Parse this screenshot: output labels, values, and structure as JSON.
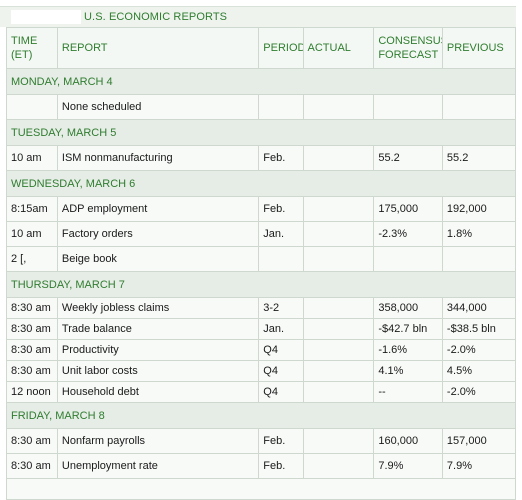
{
  "title": "U.S. ECONOMIC REPORTS",
  "columns": {
    "time": "TIME (ET)",
    "report": "REPORT",
    "period": "PERIOD",
    "actual": "ACTUAL",
    "consensus": "CONSENSUS FORECAST",
    "previous": "PREVIOUS"
  },
  "days": [
    {
      "label": "MONDAY, MARCH 4",
      "rows": [
        {
          "time": "",
          "report": "None scheduled",
          "period": "",
          "actual": "",
          "consensus": "",
          "previous": ""
        }
      ]
    },
    {
      "label": "TUESDAY, MARCH 5",
      "rows": [
        {
          "time": "10 am",
          "report": "ISM nonmanufacturing",
          "period": "Feb.",
          "actual": "",
          "consensus": "55.2",
          "previous": "55.2"
        }
      ]
    },
    {
      "label": "WEDNESDAY, MARCH 6",
      "rows": [
        {
          "time": "8:15am",
          "report": "ADP employment",
          "period": "Feb.",
          "actual": "",
          "consensus": "175,000",
          "previous": "192,000"
        },
        {
          "time": "10 am",
          "report": "Factory orders",
          "period": "Jan.",
          "actual": "",
          "consensus": "-2.3%",
          "previous": "1.8%"
        },
        {
          "time": "2 [,",
          "report": "Beige book",
          "period": "",
          "actual": "",
          "consensus": "",
          "previous": ""
        }
      ]
    },
    {
      "label": "THURSDAY, MARCH 7",
      "rows": [
        {
          "time": "8:30 am",
          "report": "Weekly jobless claims",
          "period": "3-2",
          "actual": "",
          "consensus": "358,000",
          "previous": "344,000"
        },
        {
          "time": "8:30 am",
          "report": "Trade balance",
          "period": "Jan.",
          "actual": "",
          "consensus": "-$42.7 bln",
          "previous": "-$38.5 bln"
        },
        {
          "time": "8:30 am",
          "report": "Productivity",
          "period": "Q4",
          "actual": "",
          "consensus": "-1.6%",
          "previous": "-2.0%"
        },
        {
          "time": "8:30 am",
          "report": "Unit labor costs",
          "period": "Q4",
          "actual": "",
          "consensus": "4.1%",
          "previous": "4.5%"
        },
        {
          "time": "12 noon",
          "report": "Household debt",
          "period": "Q4",
          "actual": "",
          "consensus": "--",
          "previous": "-2.0%"
        }
      ]
    },
    {
      "label": "FRIDAY, MARCH 8",
      "rows": [
        {
          "time": "8:30 am",
          "report": "Nonfarm payrolls",
          "period": "Feb.",
          "actual": "",
          "consensus": "160,000",
          "previous": "157,000"
        },
        {
          "time": "8:30 am",
          "report": "Unemployment rate",
          "period": "Feb.",
          "actual": "",
          "consensus": "7.9%",
          "previous": "7.9%"
        }
      ]
    }
  ]
}
